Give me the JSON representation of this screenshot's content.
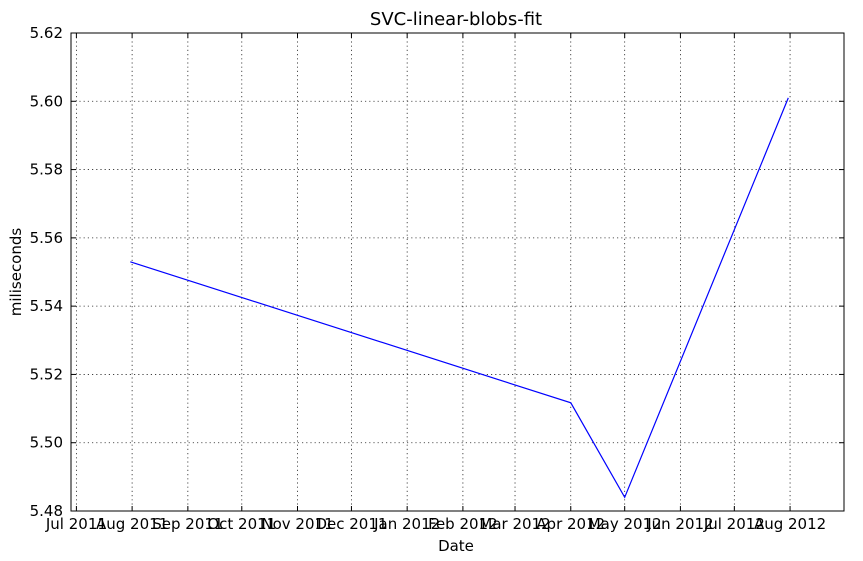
{
  "chart_data": {
    "type": "line",
    "title": "SVC-linear-blobs-fit",
    "xlabel": "Date",
    "ylabel": "miliseconds",
    "x_tick_labels": [
      "Jul 2011",
      "Aug 2011",
      "Sep 2011",
      "Oct 2011",
      "Nov 2011",
      "Dec 2011",
      "Jan 2012",
      "Feb 2012",
      "Mar 2012",
      "Apr 2012",
      "May 2012",
      "Jun 2012",
      "Jul 2012",
      "Aug 2012"
    ],
    "x_tick_dates": [
      "2011-07-01",
      "2011-08-01",
      "2011-09-01",
      "2011-10-01",
      "2011-11-01",
      "2011-12-01",
      "2012-01-01",
      "2012-02-01",
      "2012-03-01",
      "2012-04-01",
      "2012-05-01",
      "2012-06-01",
      "2012-07-01",
      "2012-08-01"
    ],
    "xlim": [
      "2011-06-28",
      "2012-08-31"
    ],
    "y_ticks": [
      "5.48",
      "5.50",
      "5.52",
      "5.54",
      "5.56",
      "5.58",
      "5.60",
      "5.62"
    ],
    "ylim": [
      5.48,
      5.62
    ],
    "grid": true,
    "color": "#0000ff",
    "series": [
      {
        "x": [
          "2011-07-31",
          "2012-04-01",
          "2012-05-01",
          "2012-07-31"
        ],
        "y": [
          5.553,
          5.5117,
          5.484,
          5.601
        ]
      }
    ]
  }
}
